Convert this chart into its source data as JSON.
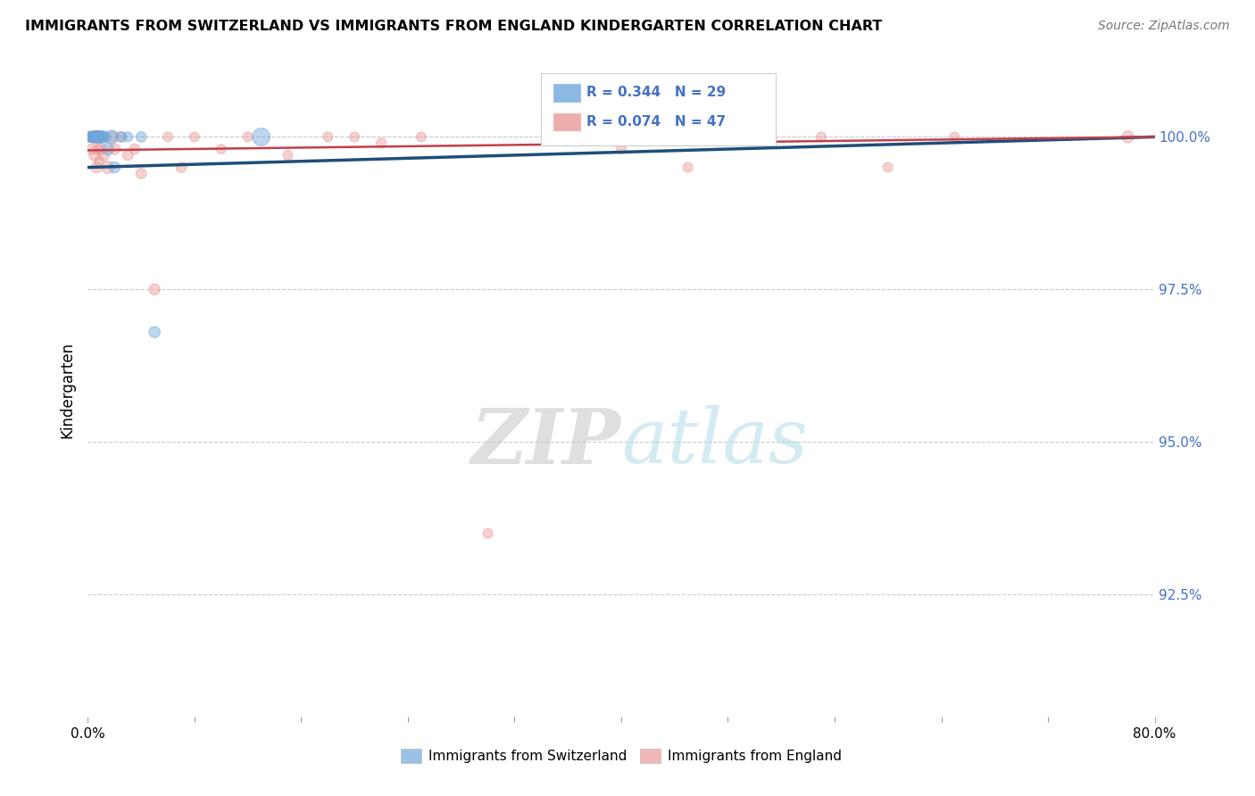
{
  "title": "IMMIGRANTS FROM SWITZERLAND VS IMMIGRANTS FROM ENGLAND KINDERGARTEN CORRELATION CHART",
  "source": "Source: ZipAtlas.com",
  "ylabel": "Kindergarten",
  "watermark_zip": "ZIP",
  "watermark_atlas": "atlas",
  "legend_r_switzerland": "R = 0.344",
  "legend_n_switzerland": "N = 29",
  "legend_r_england": "R = 0.074",
  "legend_n_england": "N = 47",
  "legend_label_switzerland": "Immigrants from Switzerland",
  "legend_label_england": "Immigrants from England",
  "color_switzerland": "#6fa8dc",
  "color_england": "#ea9999",
  "color_trendline_switzerland": "#1f4e79",
  "color_trendline_england": "#c0404a",
  "color_ytick": "#4472c4",
  "xlim": [
    0.0,
    80.0
  ],
  "ylim": [
    90.5,
    101.2
  ],
  "yticks": [
    92.5,
    95.0,
    97.5,
    100.0
  ],
  "ytick_labels": [
    "92.5%",
    "95.0%",
    "97.5%",
    "100.0%"
  ],
  "swiss_x": [
    0.15,
    0.2,
    0.25,
    0.3,
    0.35,
    0.4,
    0.45,
    0.5,
    0.55,
    0.6,
    0.65,
    0.7,
    0.75,
    0.8,
    0.85,
    0.9,
    0.95,
    1.0,
    1.1,
    1.2,
    1.3,
    1.5,
    1.8,
    2.0,
    2.5,
    3.0,
    4.0,
    5.0,
    13.0
  ],
  "swiss_y": [
    100.0,
    100.0,
    100.0,
    100.0,
    100.0,
    100.0,
    100.0,
    100.0,
    100.0,
    100.0,
    100.0,
    100.0,
    100.0,
    100.0,
    100.0,
    100.0,
    100.0,
    100.0,
    100.0,
    100.0,
    100.0,
    99.8,
    100.0,
    99.5,
    100.0,
    100.0,
    100.0,
    96.8,
    100.0
  ],
  "swiss_sizes": [
    60,
    60,
    70,
    80,
    60,
    70,
    80,
    90,
    60,
    80,
    70,
    100,
    80,
    70,
    60,
    80,
    90,
    100,
    80,
    70,
    80,
    90,
    120,
    80,
    70,
    60,
    70,
    80,
    200
  ],
  "england_x": [
    0.1,
    0.15,
    0.2,
    0.25,
    0.3,
    0.35,
    0.4,
    0.45,
    0.5,
    0.55,
    0.6,
    0.65,
    0.7,
    0.75,
    0.8,
    0.85,
    0.9,
    1.0,
    1.1,
    1.2,
    1.5,
    1.8,
    2.0,
    2.5,
    3.0,
    3.5,
    4.0,
    5.0,
    6.0,
    7.0,
    8.0,
    10.0,
    12.0,
    15.0,
    18.0,
    20.0,
    22.0,
    25.0,
    30.0,
    35.0,
    40.0,
    45.0,
    50.0,
    55.0,
    60.0,
    65.0,
    78.0
  ],
  "england_y": [
    100.0,
    100.0,
    100.0,
    100.0,
    99.8,
    100.0,
    100.0,
    100.0,
    99.7,
    100.0,
    100.0,
    99.5,
    100.0,
    99.8,
    100.0,
    99.6,
    100.0,
    99.8,
    100.0,
    99.7,
    99.5,
    100.0,
    99.8,
    100.0,
    99.7,
    99.8,
    99.4,
    97.5,
    100.0,
    99.5,
    100.0,
    99.8,
    100.0,
    99.7,
    100.0,
    100.0,
    99.9,
    100.0,
    93.5,
    100.0,
    99.8,
    99.5,
    100.0,
    100.0,
    99.5,
    100.0,
    100.0
  ],
  "england_sizes": [
    60,
    60,
    80,
    60,
    70,
    80,
    90,
    80,
    80,
    70,
    60,
    80,
    100,
    70,
    80,
    60,
    70,
    80,
    70,
    80,
    100,
    70,
    80,
    70,
    70,
    70,
    70,
    80,
    60,
    70,
    60,
    60,
    60,
    60,
    60,
    60,
    60,
    60,
    60,
    60,
    60,
    60,
    60,
    60,
    60,
    60,
    90
  ],
  "trendline_sw_x0": 0.0,
  "trendline_sw_y0": 99.5,
  "trendline_sw_x1": 80.0,
  "trendline_sw_y1": 100.0,
  "trendline_eng_x0": 0.0,
  "trendline_eng_y0": 99.78,
  "trendline_eng_x1": 80.0,
  "trendline_eng_y1": 100.0
}
